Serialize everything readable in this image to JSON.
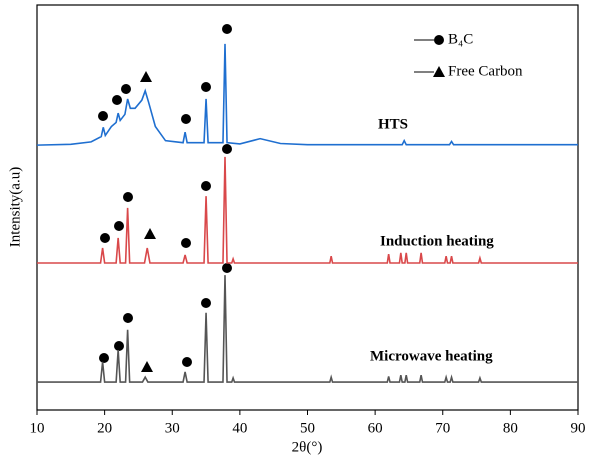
{
  "chart_data": {
    "type": "line",
    "x_label": "2θ(°)",
    "y_label": "Intensity(a.u)",
    "xlim": [
      10,
      90
    ],
    "xticks": [
      10,
      20,
      30,
      40,
      50,
      60,
      70,
      80,
      90
    ],
    "ylim": [
      0,
      100
    ],
    "legend": [
      {
        "label": "B₄C",
        "marker": "circle"
      },
      {
        "label": "Free Carbon",
        "marker": "triangle"
      }
    ],
    "series": [
      {
        "name": "HTS",
        "color": "#1f6fd0",
        "x": [
          10,
          15,
          18,
          19.5,
          19.8,
          20.1,
          21,
          21.7,
          22.0,
          22.3,
          23.0,
          23.4,
          23.8,
          24.5,
          25.5,
          26.0,
          26.5,
          27.5,
          29,
          31.6,
          31.9,
          32.2,
          34.7,
          35.0,
          35.3,
          37.5,
          37.8,
          38.1,
          40,
          43,
          46,
          50,
          64,
          64.3,
          64.6,
          71,
          71.3,
          71.6,
          90
        ],
        "values": [
          65.4,
          65.6,
          66.2,
          67.5,
          69.8,
          67.8,
          70,
          71,
          73.3,
          71.5,
          73,
          76.8,
          74.5,
          74.5,
          76.5,
          78.8,
          76,
          70,
          66.5,
          66,
          68.6,
          66,
          66,
          76.8,
          66,
          66,
          90.4,
          66,
          65.7,
          67,
          65.8,
          65.5,
          65.5,
          66.5,
          65.5,
          65.5,
          66.3,
          65.5,
          65.5
        ]
      },
      {
        "name": "Induction heating",
        "color": "#d9484a",
        "x": [
          10,
          19.4,
          19.7,
          20.0,
          21.7,
          22.0,
          22.3,
          23.1,
          23.4,
          23.7,
          25.9,
          26.3,
          26.7,
          31.6,
          31.9,
          32.2,
          34.7,
          35.0,
          35.3,
          37.5,
          37.8,
          38.1,
          38.8,
          39.0,
          39.2,
          53.3,
          53.5,
          53.7,
          61.8,
          62.0,
          62.2,
          63.6,
          63.8,
          64.0,
          64.4,
          64.6,
          64.8,
          66.6,
          66.8,
          67.0,
          70.3,
          70.5,
          70.7,
          71.1,
          71.3,
          71.5,
          75.3,
          75.5,
          75.7,
          90
        ],
        "values": [
          36.3,
          36.3,
          40,
          36.3,
          36.3,
          42.5,
          36.3,
          36.3,
          49.9,
          36.3,
          36.3,
          40,
          36.3,
          36.3,
          38.3,
          36.3,
          36.3,
          52.8,
          36.3,
          36.3,
          62.5,
          36.3,
          36.3,
          37.3,
          36.3,
          36.3,
          38,
          36.3,
          36.3,
          38.5,
          36.3,
          36.3,
          38.8,
          36.3,
          36.3,
          38.8,
          36.3,
          36.3,
          38.8,
          36.3,
          36.3,
          38,
          36.3,
          36.3,
          38,
          36.3,
          36.3,
          37.5,
          36.3,
          36.3
        ]
      },
      {
        "name": "Microwave heating",
        "color": "#555555",
        "x": [
          10,
          19.4,
          19.7,
          20.0,
          21.7,
          22.0,
          22.3,
          23.1,
          23.4,
          23.7,
          25.6,
          26.0,
          26.4,
          31.6,
          31.9,
          32.2,
          34.7,
          35.0,
          35.3,
          37.5,
          37.8,
          38.1,
          38.8,
          39.0,
          39.2,
          53.3,
          53.5,
          53.7,
          61.8,
          62.0,
          62.2,
          63.6,
          63.8,
          64.0,
          64.4,
          64.6,
          64.8,
          66.6,
          66.8,
          67.0,
          70.3,
          70.5,
          70.7,
          71.1,
          71.3,
          71.5,
          75.3,
          75.5,
          75.7,
          90
        ],
        "values": [
          6.9,
          6.9,
          11.9,
          6.9,
          6.9,
          14.8,
          6.9,
          6.9,
          19.8,
          6.9,
          6.9,
          8.1,
          6.9,
          6.9,
          9.4,
          6.9,
          6.9,
          24,
          6.9,
          6.9,
          33.3,
          6.9,
          6.9,
          7.9,
          6.9,
          6.9,
          8.1,
          6.9,
          6.9,
          8.3,
          6.9,
          6.9,
          8.6,
          6.9,
          6.9,
          8.6,
          6.9,
          6.9,
          8.6,
          6.9,
          6.9,
          8.1,
          6.9,
          6.9,
          8.1,
          6.9,
          6.9,
          7.9,
          6.9,
          6.9
        ]
      }
    ]
  }
}
